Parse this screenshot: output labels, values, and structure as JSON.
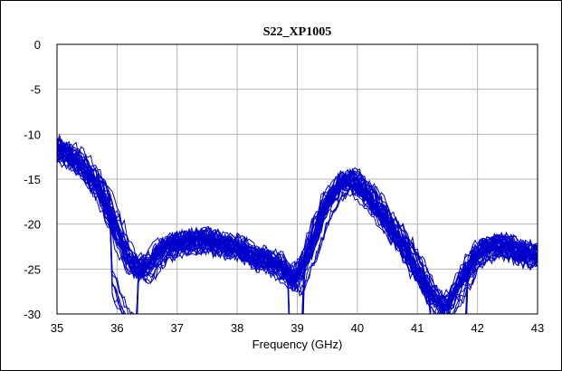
{
  "chart_data": {
    "type": "line",
    "title": "S22_XP1005",
    "xlabel": "Frequency (GHz)",
    "ylabel": "",
    "xlim": [
      35,
      43
    ],
    "ylim": [
      -30,
      0
    ],
    "xticks": [
      35,
      36,
      37,
      38,
      39,
      40,
      41,
      42,
      43
    ],
    "yticks": [
      0,
      -5,
      -10,
      -15,
      -20,
      -25,
      -30
    ],
    "grid": true,
    "legend": "none",
    "line_color": "#0000cc",
    "envelope": {
      "x": [
        35.0,
        35.25,
        35.5,
        35.75,
        36.0,
        36.25,
        36.5,
        36.75,
        37.0,
        37.25,
        37.5,
        37.75,
        38.0,
        38.25,
        38.5,
        38.75,
        39.0,
        39.25,
        39.5,
        39.75,
        39.85,
        40.0,
        40.25,
        40.5,
        40.75,
        41.0,
        41.25,
        41.5,
        41.75,
        42.0,
        42.25,
        42.5,
        42.75,
        43.0
      ],
      "mean": [
        -11.6,
        -12.6,
        -14.0,
        -16.5,
        -20.5,
        -24.5,
        -25.2,
        -23.0,
        -22.2,
        -22.0,
        -21.8,
        -22.4,
        -22.6,
        -23.6,
        -24.0,
        -24.8,
        -26.5,
        -22.5,
        -17.8,
        -15.6,
        -15.2,
        -15.6,
        -17.2,
        -19.8,
        -22.0,
        -25.0,
        -28.0,
        -29.5,
        -26.5,
        -23.5,
        -22.5,
        -22.5,
        -23.3,
        -23.6
      ]
    },
    "series_count": 40,
    "series": []
  }
}
